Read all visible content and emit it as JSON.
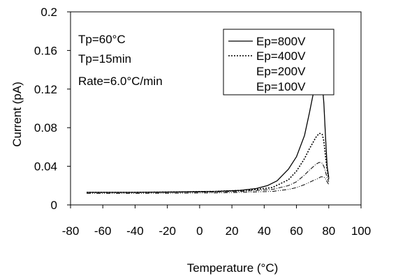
{
  "chart_data": {
    "type": "line",
    "xlabel": "Temperature (°C)",
    "ylabel": "Current (pA)",
    "xlim": [
      -80,
      100
    ],
    "ylim": [
      0,
      0.2
    ],
    "xticks": [
      -80,
      -60,
      -40,
      -20,
      0,
      20,
      40,
      60,
      80,
      100
    ],
    "yticks": [
      0,
      0.04,
      0.08,
      0.12,
      0.16,
      0.2
    ],
    "ytick_labels": [
      "0",
      "0.04",
      "0.08",
      "0.12",
      "0.16",
      "0.2"
    ],
    "grid": false,
    "legend_position": "top-right",
    "annotations": [
      "Tp=60°C",
      "Tp=15min",
      "Rate=6.0°C/min"
    ],
    "series": [
      {
        "name": "Ep=800V",
        "style": "solid",
        "x": [
          -70,
          -40,
          -10,
          10,
          25,
          35,
          42,
          48,
          55,
          60,
          65,
          68,
          70,
          72,
          73,
          74,
          75,
          76,
          77,
          78,
          79,
          80
        ],
        "y": [
          0.013,
          0.013,
          0.0135,
          0.014,
          0.015,
          0.017,
          0.02,
          0.025,
          0.037,
          0.05,
          0.072,
          0.095,
          0.112,
          0.127,
          0.133,
          0.137,
          0.136,
          0.126,
          0.105,
          0.07,
          0.04,
          0.028
        ]
      },
      {
        "name": "Ep=400V",
        "style": "dotted",
        "x": [
          -70,
          -40,
          -10,
          10,
          25,
          35,
          45,
          55,
          60,
          65,
          68,
          70,
          72,
          74,
          75,
          76,
          77,
          78,
          79,
          80
        ],
        "y": [
          0.013,
          0.013,
          0.0135,
          0.014,
          0.015,
          0.016,
          0.018,
          0.026,
          0.035,
          0.048,
          0.058,
          0.064,
          0.07,
          0.074,
          0.074,
          0.073,
          0.066,
          0.05,
          0.036,
          0.026
        ]
      },
      {
        "name": "Ep=200V",
        "style": "dash-dot",
        "x": [
          -70,
          -40,
          -10,
          10,
          25,
          35,
          45,
          55,
          60,
          65,
          68,
          70,
          72,
          74,
          75,
          76,
          77,
          78,
          79,
          80
        ],
        "y": [
          0.013,
          0.013,
          0.0132,
          0.0135,
          0.014,
          0.015,
          0.016,
          0.02,
          0.024,
          0.031,
          0.036,
          0.039,
          0.042,
          0.044,
          0.044,
          0.043,
          0.04,
          0.034,
          0.028,
          0.024
        ]
      },
      {
        "name": "Ep=100V",
        "style": "dash-dot-dot",
        "x": [
          -70,
          -40,
          -10,
          10,
          25,
          35,
          45,
          55,
          60,
          65,
          70,
          73,
          75,
          77,
          78,
          79,
          80
        ],
        "y": [
          0.012,
          0.012,
          0.0122,
          0.0125,
          0.013,
          0.0135,
          0.014,
          0.016,
          0.018,
          0.021,
          0.025,
          0.027,
          0.029,
          0.029,
          0.027,
          0.024,
          0.021
        ]
      }
    ]
  }
}
